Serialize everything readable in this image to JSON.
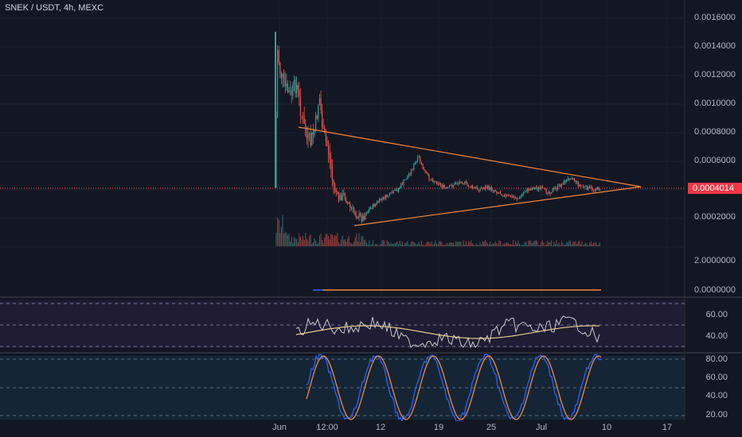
{
  "header": {
    "title": "SNEK / USDT, 4h, MEXC"
  },
  "main_pane": {
    "y_ticks": [
      "0.0016000",
      "0.0014000",
      "0.0012000",
      "0.0010000",
      "0.0008000",
      "0.0006000",
      "0.0002000"
    ],
    "last_price": "0.0004014"
  },
  "volume_pane": {
    "y_ticks": [
      "2.0000000",
      "0.0000000"
    ]
  },
  "rsi_pane": {
    "y_ticks": [
      "60.00",
      "40.00"
    ]
  },
  "stoch_pane": {
    "y_ticks": [
      "80.00",
      "60.00",
      "40.00",
      "20.00"
    ]
  },
  "x_axis": {
    "ticks": [
      "Jun",
      "12:00",
      "12",
      "19",
      "25",
      "Jul",
      "10",
      "17"
    ]
  },
  "colors": {
    "background": "#131722",
    "up": "#26a69a",
    "down": "#ef5350",
    "trendline": "#f0883e",
    "rsi_line": "#c9c9c9",
    "rsi_ma": "#e6c88a",
    "stoch_k": "#2962ff",
    "stoch_d": "#f0883e",
    "price_badge": "#f23645"
  }
}
